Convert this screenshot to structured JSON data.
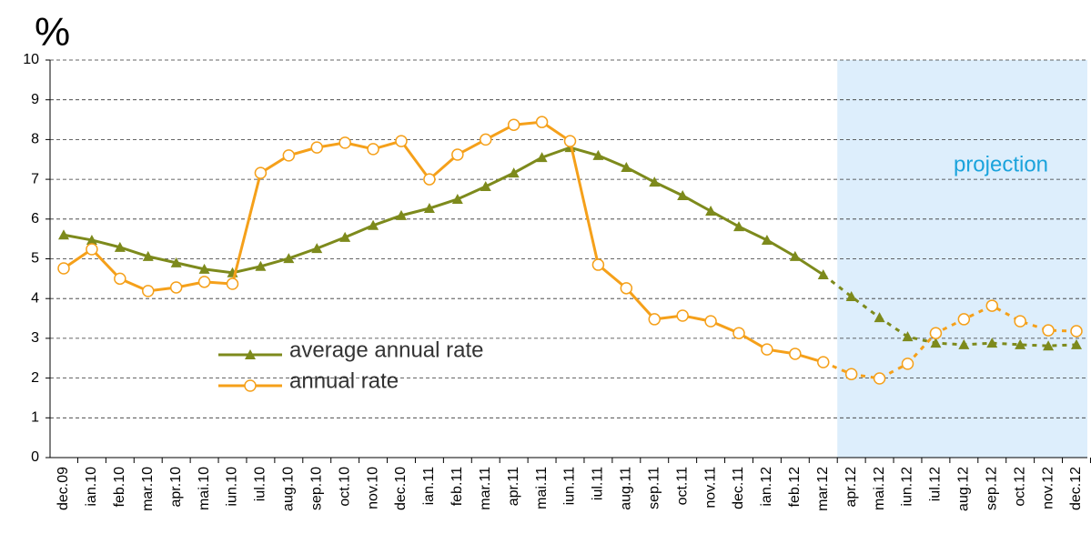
{
  "chart_data": {
    "type": "line",
    "y_label": "%",
    "annotation": "projection",
    "projection_start": 28,
    "categories": [
      "dec.09",
      "ian.10",
      "feb.10",
      "mar.10",
      "apr.10",
      "mai.10",
      "iun.10",
      "iul.10",
      "aug.10",
      "sep.10",
      "oct.10",
      "nov.10",
      "dec.10",
      "ian.11",
      "feb.11",
      "mar.11",
      "apr.11",
      "mai.11",
      "iun.11",
      "iul.11",
      "aug.11",
      "sep.11",
      "oct.11",
      "nov.11",
      "dec.11",
      "ian.12",
      "feb.12",
      "mar.12",
      "apr.12",
      "mai.12",
      "iun.12",
      "iul.12",
      "aug.12",
      "sep.12",
      "oct.12",
      "nov.12",
      "dec.12"
    ],
    "series": [
      {
        "name": "average annual rate",
        "color": "#7d8a1c",
        "marker": "triangle",
        "values": [
          5.6,
          5.47,
          5.29,
          5.06,
          4.9,
          4.74,
          4.65,
          4.81,
          5.01,
          5.26,
          5.54,
          5.84,
          6.09,
          6.27,
          6.5,
          6.82,
          7.16,
          7.55,
          7.8,
          7.6,
          7.3,
          6.93,
          6.59,
          6.2,
          5.81,
          5.47,
          5.06,
          4.6,
          4.05,
          3.52,
          3.04,
          2.88,
          2.84,
          2.88,
          2.84,
          2.81,
          2.84
        ]
      },
      {
        "name": "annual rate",
        "color": "#f5a01a",
        "marker": "circle",
        "values": [
          4.76,
          5.24,
          4.5,
          4.19,
          4.28,
          4.42,
          4.37,
          7.16,
          7.6,
          7.8,
          7.92,
          7.76,
          7.96,
          7.0,
          7.62,
          8.0,
          8.37,
          8.44,
          7.96,
          4.85,
          4.26,
          3.48,
          3.57,
          3.43,
          3.13,
          2.72,
          2.61,
          2.4,
          2.1,
          1.99,
          2.36,
          3.13,
          3.48,
          3.82,
          3.43,
          3.2,
          3.18
        ]
      }
    ],
    "ylim": [
      0,
      10
    ],
    "yticks": [
      0,
      1,
      2,
      3,
      4,
      5,
      6,
      7,
      8,
      9,
      10
    ],
    "grid": true
  }
}
